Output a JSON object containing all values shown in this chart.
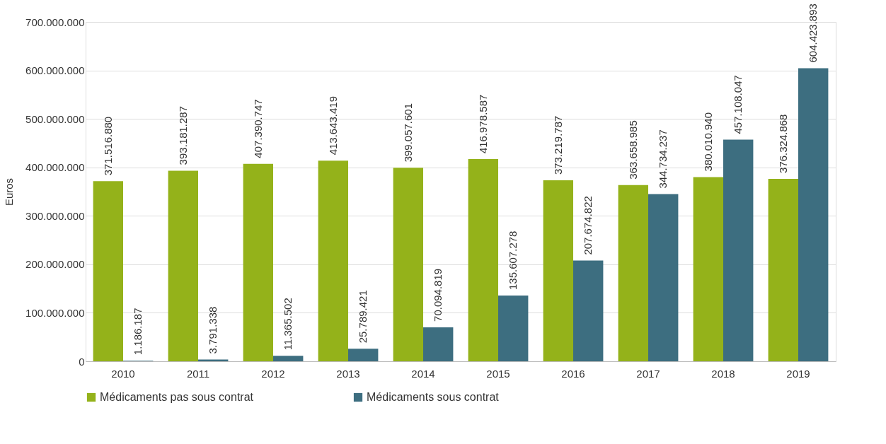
{
  "chart_data": {
    "type": "bar",
    "ylabel": "Euros",
    "categories": [
      "2010",
      "2011",
      "2012",
      "2013",
      "2014",
      "2015",
      "2016",
      "2017",
      "2018",
      "2019"
    ],
    "series": [
      {
        "name": "Médicaments pas sous contrat",
        "color": "#94b21a",
        "values": [
          371516880,
          393181287,
          407390747,
          413643419,
          399057601,
          416978587,
          373219787,
          363658985,
          380010940,
          376324868
        ],
        "value_labels": [
          "371.516.880",
          "393.181.287",
          "407.390.747",
          "413.643.419",
          "399.057.601",
          "416.978.587",
          "373.219.787",
          "363.658.985",
          "380.010.940",
          "376.324.868"
        ]
      },
      {
        "name": "Médicaments sous contrat",
        "color": "#3d6e80",
        "values": [
          1186187,
          3791338,
          11365502,
          25789421,
          70094819,
          135607278,
          207674822,
          344734237,
          457108047,
          604423893
        ],
        "value_labels": [
          "1.186.187",
          "3.791.338",
          "11.365.502",
          "25.789.421",
          "70.094.819",
          "135.607.278",
          "207.674.822",
          "344.734.237",
          "457.108.047",
          "604.423.893"
        ]
      }
    ],
    "ylim": [
      0,
      700000000
    ],
    "yticks": [
      {
        "value": 0,
        "label": "0"
      },
      {
        "value": 100000000,
        "label": "100.000.000"
      },
      {
        "value": 200000000,
        "label": "200.000.000"
      },
      {
        "value": 300000000,
        "label": "300.000.000"
      },
      {
        "value": 400000000,
        "label": "400.000.000"
      },
      {
        "value": 500000000,
        "label": "500.000.000"
      },
      {
        "value": 600000000,
        "label": "600.000.000"
      },
      {
        "value": 700000000,
        "label": "700.000.000"
      }
    ],
    "grid": "y",
    "legend": "bottom"
  }
}
